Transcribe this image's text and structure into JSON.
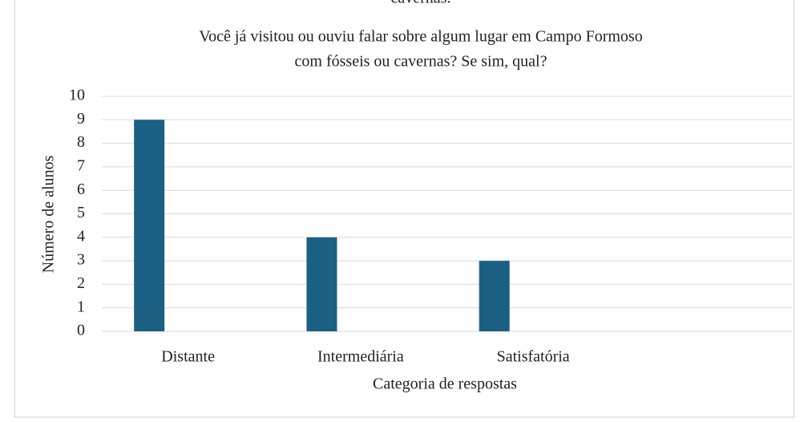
{
  "clipped_text": "cavernas.",
  "chart_data": {
    "type": "bar",
    "title": [
      "Você já visitou ou ouviu falar sobre algum lugar em Campo Formoso",
      "com fósseis ou cavernas? Se sim, qual?"
    ],
    "x_label": "Categoria de respostas",
    "y_label": "Número de alunos",
    "categories": [
      "Distante",
      "Intermediária",
      "Satisfatória",
      null
    ],
    "values": [
      9,
      4,
      3,
      null
    ],
    "color": "#1b5f82",
    "ylim": [
      0,
      10
    ],
    "yticks": [
      0,
      1,
      2,
      3,
      4,
      5,
      6,
      7,
      8,
      9,
      10
    ],
    "grid": true
  }
}
